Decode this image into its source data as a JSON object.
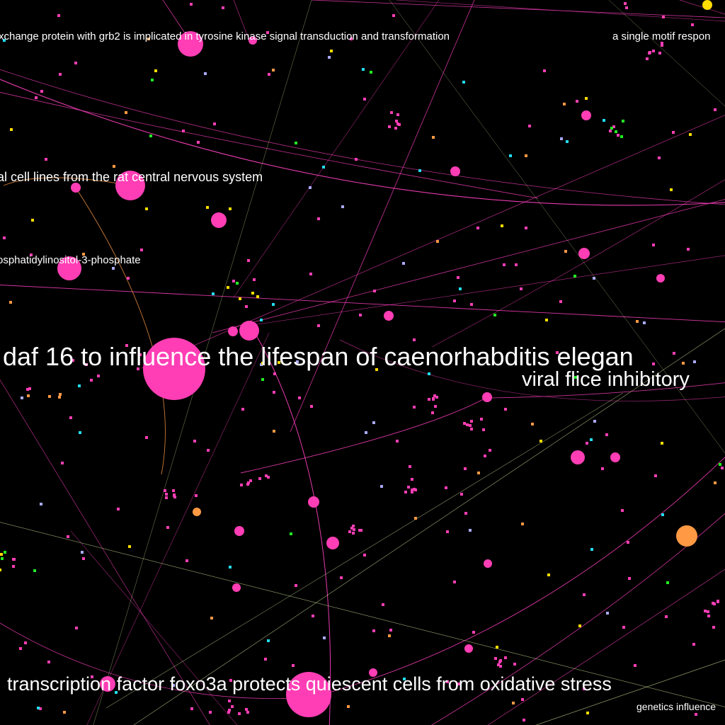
{
  "palette": {
    "background": "#000000",
    "node_primary": "#ff3eb5",
    "node_secondary": "#ff9944",
    "node_tertiary": "#ffdd00",
    "node_green": "#22ee22",
    "node_cyan": "#22ddee",
    "node_lavender": "#aaaaff",
    "edge_pink": "#ff40c0",
    "edge_pale": "#d8f0a0",
    "label": "#ffffff"
  },
  "labels": [
    "xchange protein with grb2 is implicated in tyrosine kinase signal transduction and transformation",
    "a single motif respon",
    "al cell lines from the rat central nervous system",
    "osphatidylinositol-3-phosphate",
    "daf 16 to influence the lifespan of caenorhabditis elegan",
    "viral flice inhibitory",
    "transcription factor foxo3a protects quiescent cells from oxidative stress",
    "genetics influence"
  ]
}
